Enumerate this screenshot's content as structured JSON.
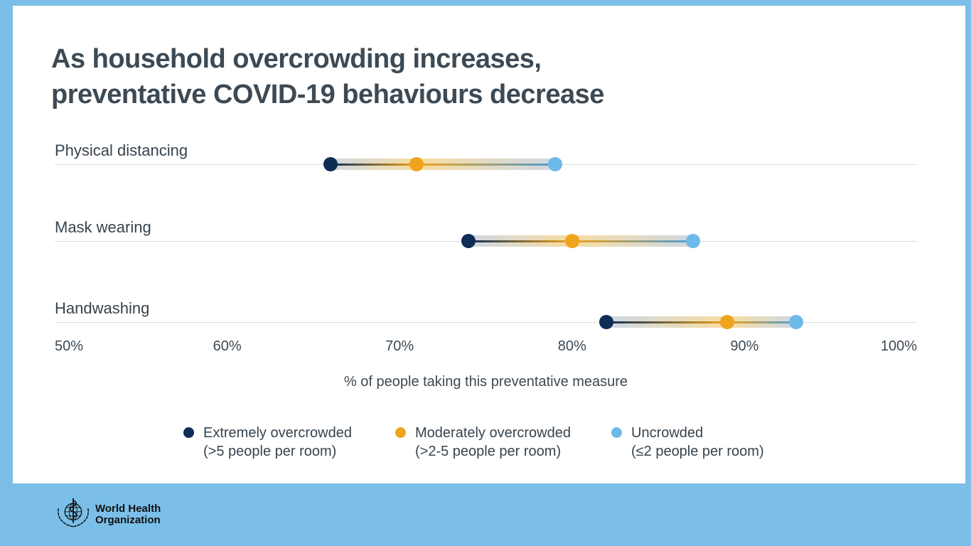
{
  "title": {
    "line1": "As household overcrowding increases,",
    "line2": "preventative COVID-19 behaviours decrease"
  },
  "chart_data": {
    "type": "scatter",
    "variant": "dumbbell-dot-plot",
    "categories": [
      "Physical distancing",
      "Mask wearing",
      "Handwashing"
    ],
    "series": [
      {
        "name": "Extremely overcrowded (>5 people per room)",
        "color": "#0e2d55",
        "values": [
          66,
          74,
          82
        ]
      },
      {
        "name": "Moderately overcrowded (>2-5 people per room)",
        "color": "#efa41e",
        "values": [
          71,
          80,
          89
        ]
      },
      {
        "name": "Uncrowded (≤2 people per room)",
        "color": "#6db9ea",
        "values": [
          79,
          87,
          93
        ]
      }
    ],
    "xlabel": "% of people taking this preventative measure",
    "xlim": [
      50,
      100
    ],
    "xticks": [
      "50%",
      "60%",
      "70%",
      "80%",
      "90%",
      "100%"
    ],
    "grid": "horizontal-row-lines",
    "legend_position": "bottom"
  },
  "legend": {
    "items": [
      {
        "label": "Extremely overcrowded",
        "sublabel": "(>5 people per room)",
        "color": "#0e2d55"
      },
      {
        "label": "Moderately overcrowded",
        "sublabel": "(>2-5 people per room)",
        "color": "#efa41e"
      },
      {
        "label": "Uncrowded",
        "sublabel": "(≤2 people per room)",
        "color": "#6db9ea"
      }
    ]
  },
  "footer": {
    "logo_line1": "World Health",
    "logo_line2": "Organization"
  },
  "colors": {
    "background": "#7bbfe9",
    "card": "#ffffff",
    "title_text": "#3d4a54",
    "gridline": "#d9dcdf",
    "navy": "#0e2d55",
    "orange": "#efa41e",
    "light_blue": "#6db9ea"
  }
}
